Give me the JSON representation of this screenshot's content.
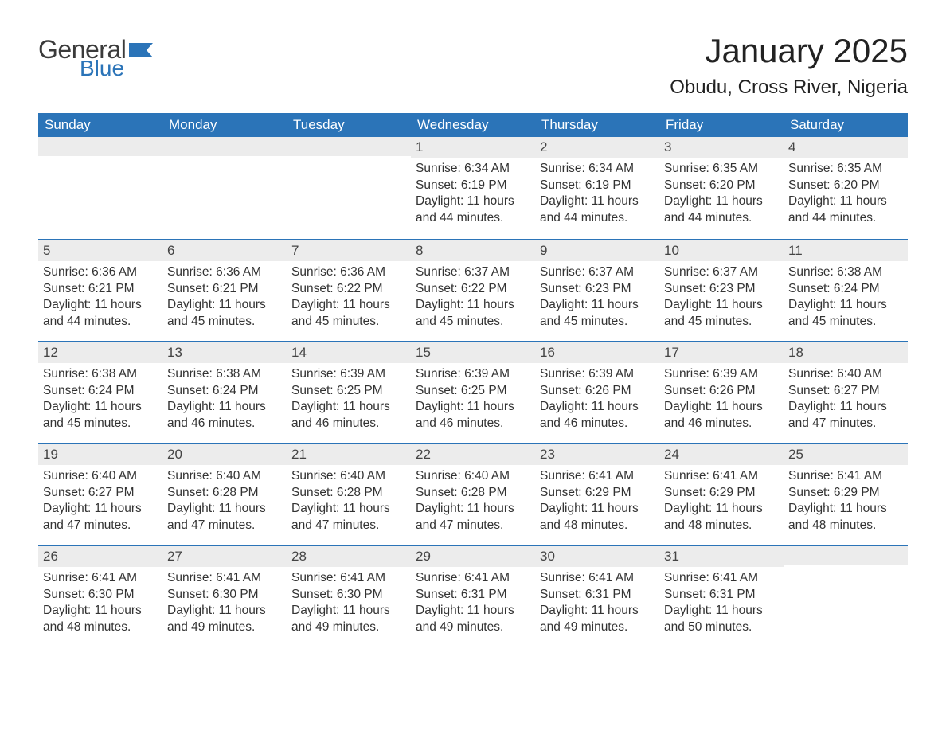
{
  "brand": {
    "word1": "General",
    "word2": "Blue",
    "flag_color": "#2b74b8"
  },
  "title": "January 2025",
  "location": "Obudu, Cross River, Nigeria",
  "colors": {
    "header_bg": "#2b74b8",
    "header_text": "#ffffff",
    "daynum_bg": "#ececec",
    "body_text": "#333333",
    "rule": "#2b74b8",
    "page_bg": "#ffffff"
  },
  "typography": {
    "title_fontsize": 42,
    "location_fontsize": 24,
    "weekday_fontsize": 17,
    "body_fontsize": 15.5
  },
  "weekdays": [
    "Sunday",
    "Monday",
    "Tuesday",
    "Wednesday",
    "Thursday",
    "Friday",
    "Saturday"
  ],
  "label": {
    "sunrise": "Sunrise: ",
    "sunset": "Sunset: ",
    "daylight": "Daylight: "
  },
  "weeks": [
    [
      null,
      null,
      null,
      {
        "n": "1",
        "sunrise": "6:34 AM",
        "sunset": "6:19 PM",
        "daylight": "11 hours and 44 minutes."
      },
      {
        "n": "2",
        "sunrise": "6:34 AM",
        "sunset": "6:19 PM",
        "daylight": "11 hours and 44 minutes."
      },
      {
        "n": "3",
        "sunrise": "6:35 AM",
        "sunset": "6:20 PM",
        "daylight": "11 hours and 44 minutes."
      },
      {
        "n": "4",
        "sunrise": "6:35 AM",
        "sunset": "6:20 PM",
        "daylight": "11 hours and 44 minutes."
      }
    ],
    [
      {
        "n": "5",
        "sunrise": "6:36 AM",
        "sunset": "6:21 PM",
        "daylight": "11 hours and 44 minutes."
      },
      {
        "n": "6",
        "sunrise": "6:36 AM",
        "sunset": "6:21 PM",
        "daylight": "11 hours and 45 minutes."
      },
      {
        "n": "7",
        "sunrise": "6:36 AM",
        "sunset": "6:22 PM",
        "daylight": "11 hours and 45 minutes."
      },
      {
        "n": "8",
        "sunrise": "6:37 AM",
        "sunset": "6:22 PM",
        "daylight": "11 hours and 45 minutes."
      },
      {
        "n": "9",
        "sunrise": "6:37 AM",
        "sunset": "6:23 PM",
        "daylight": "11 hours and 45 minutes."
      },
      {
        "n": "10",
        "sunrise": "6:37 AM",
        "sunset": "6:23 PM",
        "daylight": "11 hours and 45 minutes."
      },
      {
        "n": "11",
        "sunrise": "6:38 AM",
        "sunset": "6:24 PM",
        "daylight": "11 hours and 45 minutes."
      }
    ],
    [
      {
        "n": "12",
        "sunrise": "6:38 AM",
        "sunset": "6:24 PM",
        "daylight": "11 hours and 45 minutes."
      },
      {
        "n": "13",
        "sunrise": "6:38 AM",
        "sunset": "6:24 PM",
        "daylight": "11 hours and 46 minutes."
      },
      {
        "n": "14",
        "sunrise": "6:39 AM",
        "sunset": "6:25 PM",
        "daylight": "11 hours and 46 minutes."
      },
      {
        "n": "15",
        "sunrise": "6:39 AM",
        "sunset": "6:25 PM",
        "daylight": "11 hours and 46 minutes."
      },
      {
        "n": "16",
        "sunrise": "6:39 AM",
        "sunset": "6:26 PM",
        "daylight": "11 hours and 46 minutes."
      },
      {
        "n": "17",
        "sunrise": "6:39 AM",
        "sunset": "6:26 PM",
        "daylight": "11 hours and 46 minutes."
      },
      {
        "n": "18",
        "sunrise": "6:40 AM",
        "sunset": "6:27 PM",
        "daylight": "11 hours and 47 minutes."
      }
    ],
    [
      {
        "n": "19",
        "sunrise": "6:40 AM",
        "sunset": "6:27 PM",
        "daylight": "11 hours and 47 minutes."
      },
      {
        "n": "20",
        "sunrise": "6:40 AM",
        "sunset": "6:28 PM",
        "daylight": "11 hours and 47 minutes."
      },
      {
        "n": "21",
        "sunrise": "6:40 AM",
        "sunset": "6:28 PM",
        "daylight": "11 hours and 47 minutes."
      },
      {
        "n": "22",
        "sunrise": "6:40 AM",
        "sunset": "6:28 PM",
        "daylight": "11 hours and 47 minutes."
      },
      {
        "n": "23",
        "sunrise": "6:41 AM",
        "sunset": "6:29 PM",
        "daylight": "11 hours and 48 minutes."
      },
      {
        "n": "24",
        "sunrise": "6:41 AM",
        "sunset": "6:29 PM",
        "daylight": "11 hours and 48 minutes."
      },
      {
        "n": "25",
        "sunrise": "6:41 AM",
        "sunset": "6:29 PM",
        "daylight": "11 hours and 48 minutes."
      }
    ],
    [
      {
        "n": "26",
        "sunrise": "6:41 AM",
        "sunset": "6:30 PM",
        "daylight": "11 hours and 48 minutes."
      },
      {
        "n": "27",
        "sunrise": "6:41 AM",
        "sunset": "6:30 PM",
        "daylight": "11 hours and 49 minutes."
      },
      {
        "n": "28",
        "sunrise": "6:41 AM",
        "sunset": "6:30 PM",
        "daylight": "11 hours and 49 minutes."
      },
      {
        "n": "29",
        "sunrise": "6:41 AM",
        "sunset": "6:31 PM",
        "daylight": "11 hours and 49 minutes."
      },
      {
        "n": "30",
        "sunrise": "6:41 AM",
        "sunset": "6:31 PM",
        "daylight": "11 hours and 49 minutes."
      },
      {
        "n": "31",
        "sunrise": "6:41 AM",
        "sunset": "6:31 PM",
        "daylight": "11 hours and 50 minutes."
      },
      null
    ]
  ]
}
